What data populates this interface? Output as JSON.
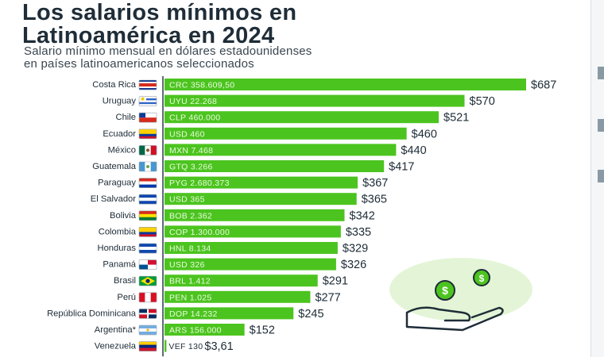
{
  "header": {
    "title_line1": "Los salarios mínimos en",
    "title_line2": "Latinoamérica en 2024",
    "subtitle_line1": "Salario mínimo mensual en dólares estadounidenses",
    "subtitle_line2": "en países latinoamericanos seleccionados"
  },
  "colors": {
    "bar": "#4cc41f",
    "bar_text": "#eafbe0",
    "value_text": "#1d2b36",
    "axis": "#2c3a44"
  },
  "chart_data": {
    "type": "bar",
    "orientation": "horizontal",
    "categories": [
      "Costa Rica",
      "Uruguay",
      "Chile",
      "Ecuador",
      "México",
      "Guatemala",
      "Paraguay",
      "El Salvador",
      "Bolivia",
      "Colombia",
      "Honduras",
      "Panamá",
      "Brasil",
      "Perú",
      "República Dominicana",
      "Argentina*",
      "Venezuela"
    ],
    "values": [
      687,
      570,
      521,
      460,
      440,
      417,
      367,
      365,
      342,
      335,
      329,
      326,
      291,
      277,
      245,
      152,
      3.61
    ],
    "value_labels": [
      "$687",
      "$570",
      "$521",
      "$460",
      "$440",
      "$417",
      "$367",
      "$365",
      "$342",
      "$335",
      "$329",
      "$326",
      "$291",
      "$277",
      "$245",
      "$152",
      "$3,61"
    ],
    "local_currency_labels": [
      "CRC 358.609,50",
      "UYU 22.268",
      "CLP 460.000",
      "USD 460",
      "MXN 7.468",
      "GTQ 3.266",
      "PYG 2.680.373",
      "USD 365",
      "BOB 2.362",
      "COP 1.300.000",
      "HNL 8.134",
      "USD 326",
      "BRL 1.412",
      "PEN 1.025",
      "DOP 14.232",
      "ARS 156.000",
      "VEF 130"
    ],
    "flags": [
      "costa-rica",
      "uruguay",
      "chile",
      "ecuador",
      "mexico",
      "guatemala",
      "paraguay",
      "el-salvador",
      "bolivia",
      "colombia",
      "honduras",
      "panama",
      "brasil",
      "peru",
      "republica-dominicana",
      "argentina",
      "venezuela"
    ],
    "xlim": [
      0,
      700
    ],
    "grid": false,
    "legend": "none"
  }
}
